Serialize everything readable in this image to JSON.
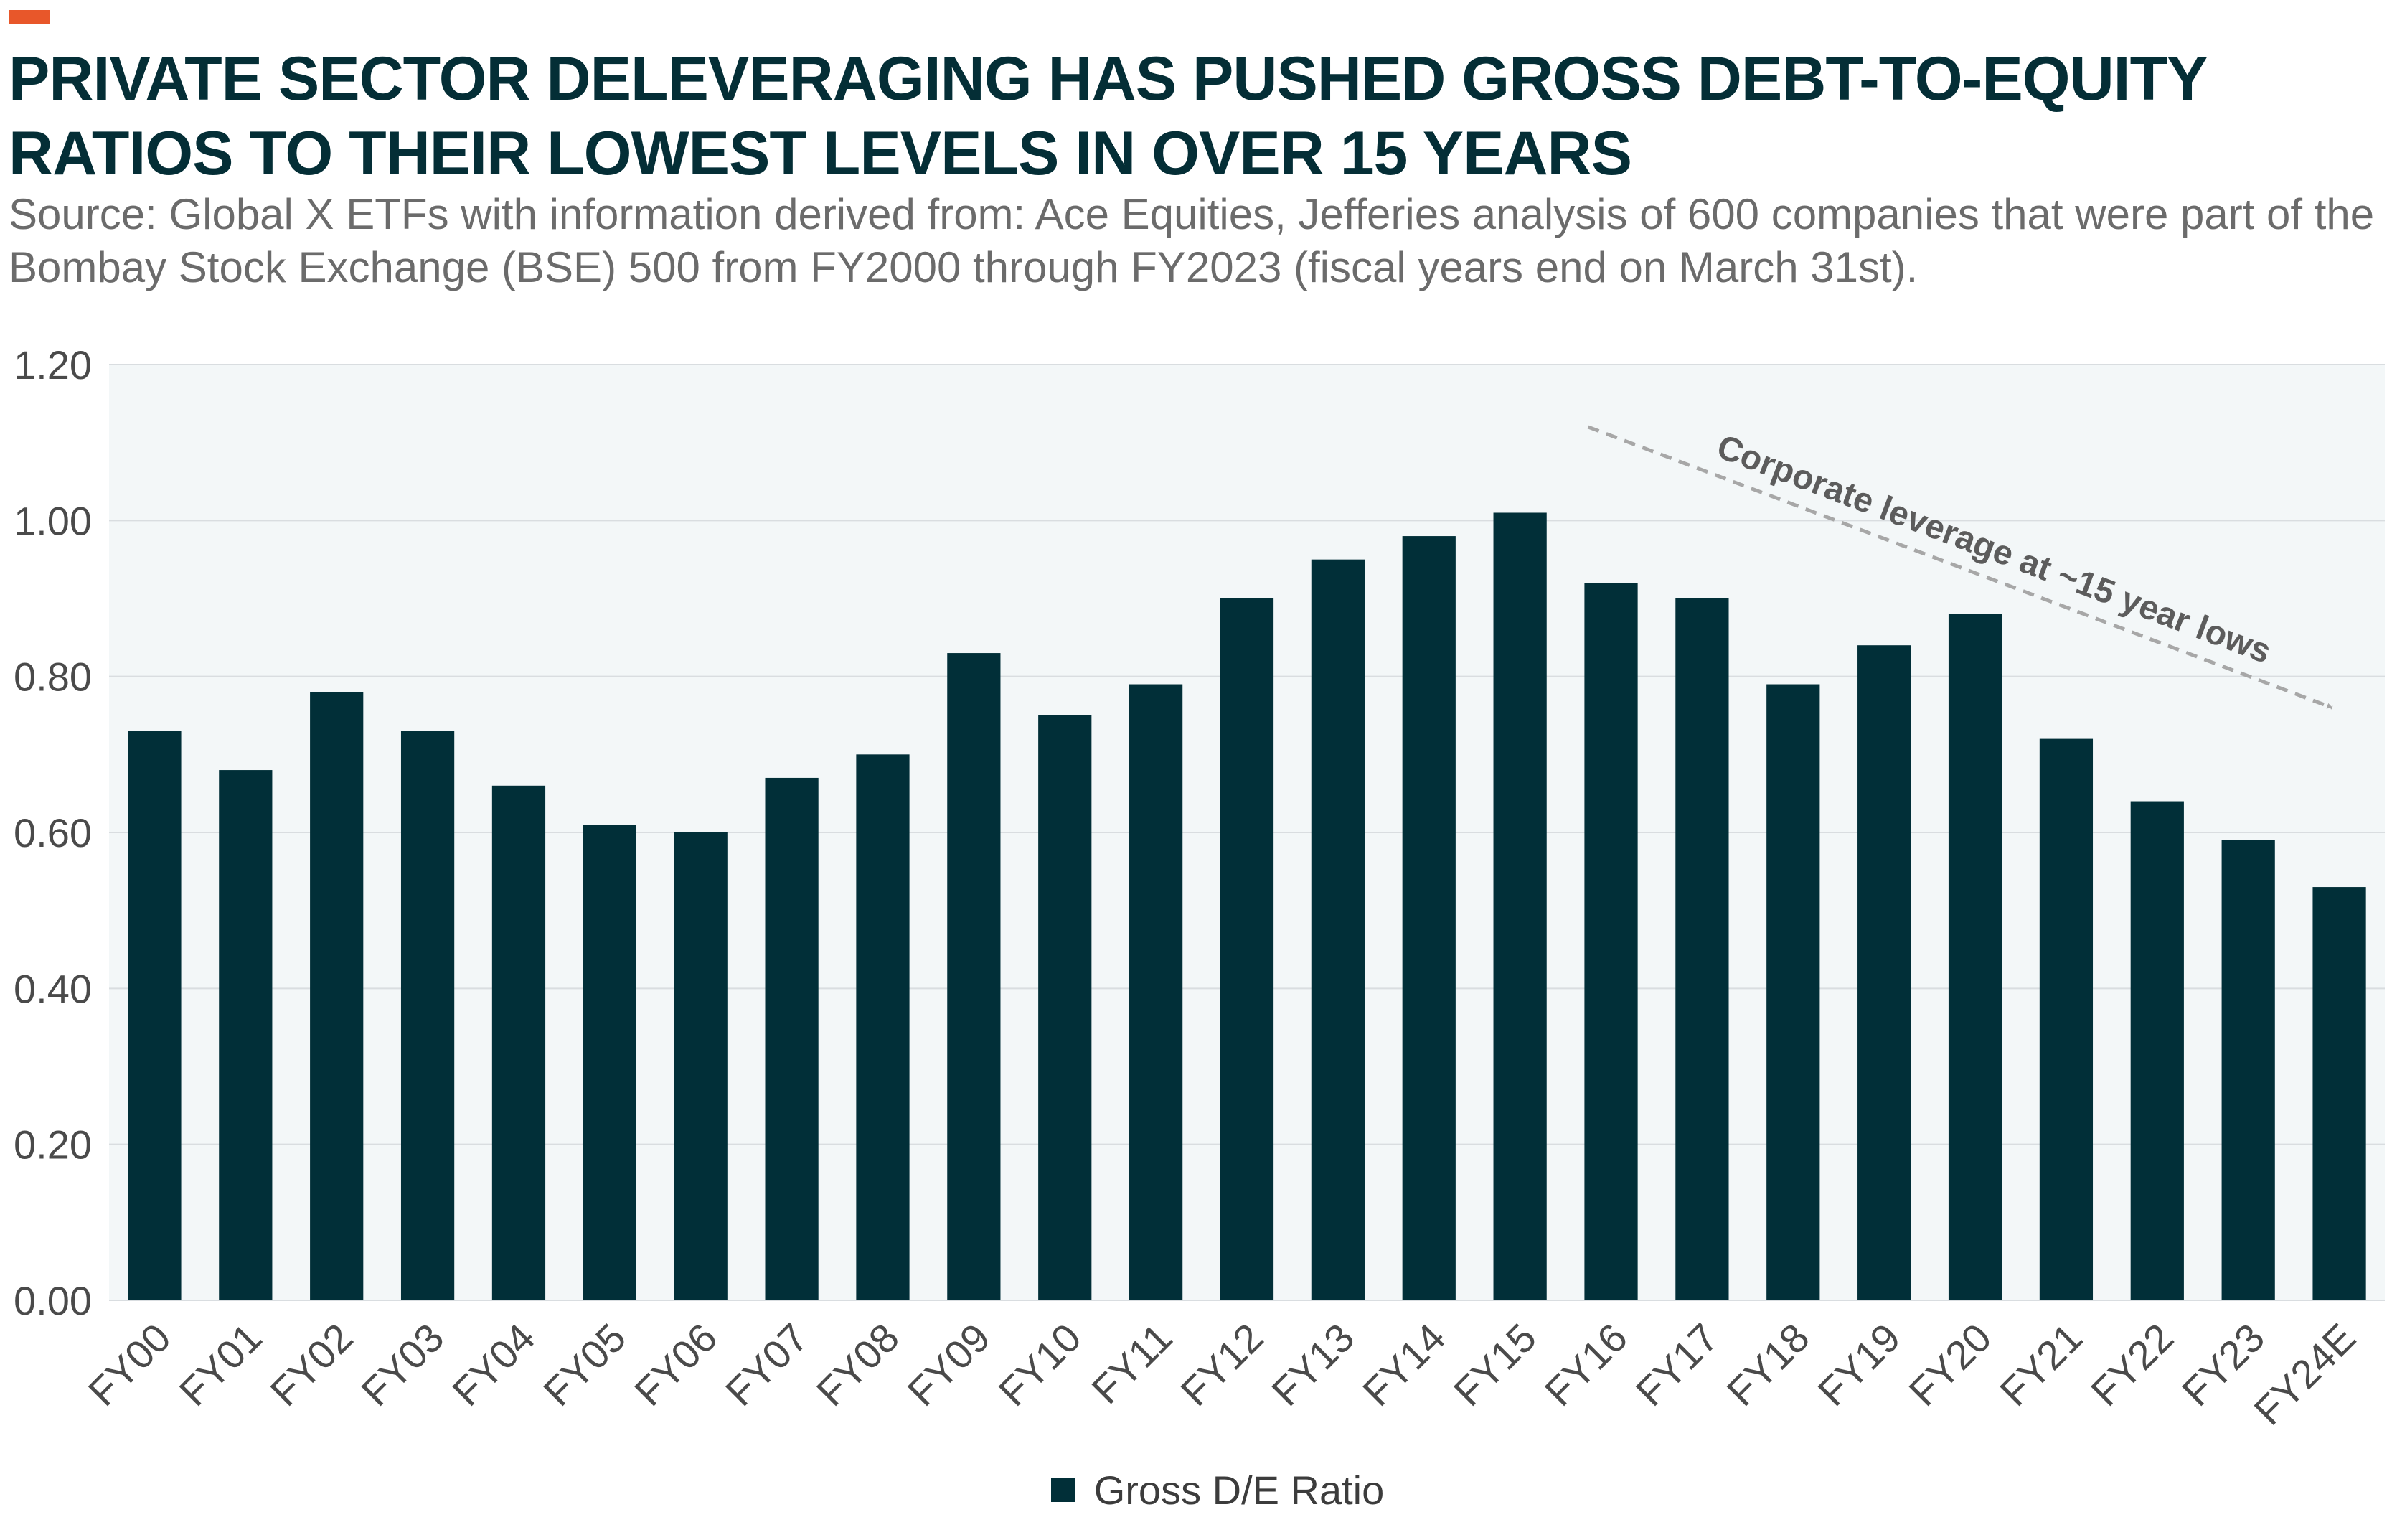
{
  "header": {
    "title": "PRIVATE SECTOR DELEVERAGING HAS PUSHED GROSS DEBT-TO-EQUITY RATIOS TO THEIR LOWEST LEVELS IN OVER 15 YEARS",
    "source": "Source: Global X ETFs with information derived from: Ace Equities, Jefferies analysis of 600 companies that were part of the Bombay Stock Exchange (BSE) 500 from FY2000 through FY2023 (fiscal years end on March 31st)."
  },
  "colors": {
    "accent": "#e8572a",
    "title": "#042e36",
    "bar": "#012f38",
    "plot_background": "#f3f7f8",
    "gridline": "#d9dde0",
    "annotation": "#5c5c5c",
    "arrow": "#a7a7a7"
  },
  "chart_data": {
    "type": "bar",
    "categories": [
      "FY00",
      "FY01",
      "FY02",
      "FY03",
      "FY04",
      "FY05",
      "FY06",
      "FY07",
      "FY08",
      "FY09",
      "FY10",
      "FY11",
      "FY12",
      "FY13",
      "FY14",
      "FY15",
      "FY16",
      "FY17",
      "FY18",
      "FY19",
      "FY20",
      "FY21",
      "FY22",
      "FY23",
      "FY24E"
    ],
    "series": [
      {
        "name": "Gross D/E Ratio",
        "values": [
          0.73,
          0.68,
          0.78,
          0.73,
          0.66,
          0.61,
          0.6,
          0.67,
          0.7,
          0.83,
          0.75,
          0.79,
          0.9,
          0.95,
          0.98,
          1.01,
          0.92,
          0.9,
          0.79,
          0.84,
          0.88,
          0.72,
          0.64,
          0.59,
          0.53
        ]
      }
    ],
    "ylim": [
      0,
      1.2
    ],
    "yticks": [
      "0.00",
      "0.20",
      "0.40",
      "0.60",
      "0.80",
      "1.00",
      "1.20"
    ],
    "grid": true,
    "legend": "bottom-center",
    "annotation": {
      "text": "Corporate leverage at ~15 year lows",
      "arrow_from": {
        "category": "FY16",
        "y": 1.12
      },
      "arrow_to": {
        "category": "FY24E",
        "y": 0.76
      }
    }
  }
}
